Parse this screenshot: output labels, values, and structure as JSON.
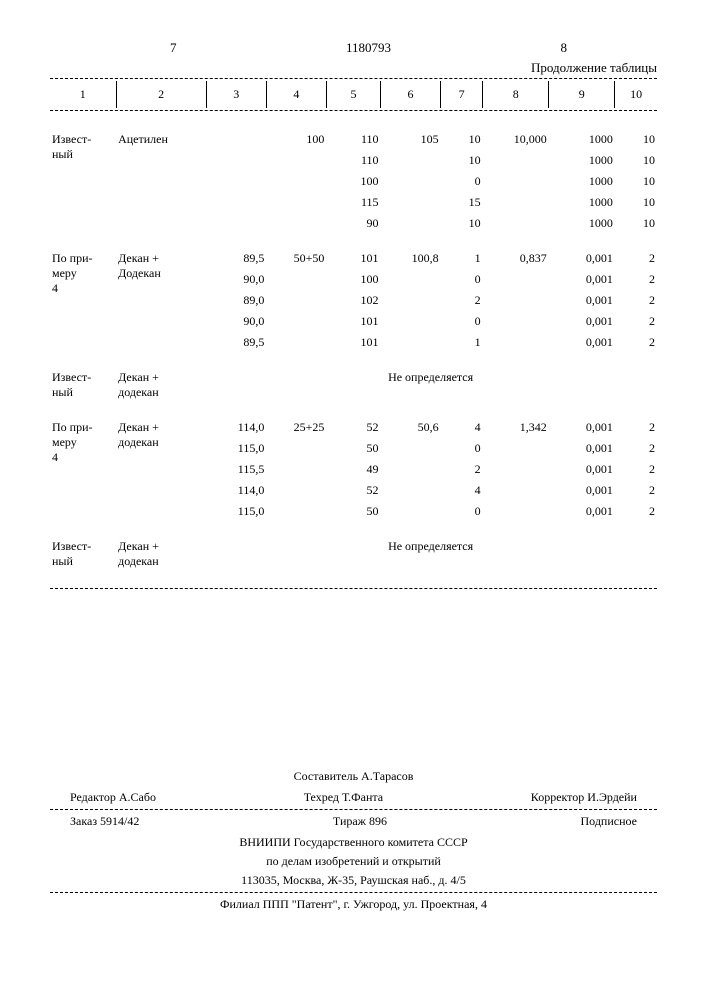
{
  "header": {
    "left_page": "7",
    "doc_number": "1180793",
    "right_page": "8",
    "continuation": "Продолжение таблицы"
  },
  "columns": [
    "1",
    "2",
    "3",
    "4",
    "5",
    "6",
    "7",
    "8",
    "9",
    "10"
  ],
  "groups": [
    {
      "label1": "Извест-\nный",
      "label2": "Ацетилен",
      "rows": [
        {
          "c3": "",
          "c4": "100",
          "c5": "110",
          "c6": "105",
          "c7": "10",
          "c8": "10,000",
          "c9": "1000",
          "c10": "10"
        },
        {
          "c3": "",
          "c4": "",
          "c5": "110",
          "c6": "",
          "c7": "10",
          "c8": "",
          "c9": "1000",
          "c10": "10"
        },
        {
          "c3": "",
          "c4": "",
          "c5": "100",
          "c6": "",
          "c7": "0",
          "c8": "",
          "c9": "1000",
          "c10": "10"
        },
        {
          "c3": "",
          "c4": "",
          "c5": "115",
          "c6": "",
          "c7": "15",
          "c8": "",
          "c9": "1000",
          "c10": "10"
        },
        {
          "c3": "",
          "c4": "",
          "c5": "90",
          "c6": "",
          "c7": "10",
          "c8": "",
          "c9": "1000",
          "c10": "10"
        }
      ]
    },
    {
      "label1": "По при-\nмеру\n4",
      "label2": "Декан +\nДодекан",
      "rows": [
        {
          "c3": "89,5",
          "c4": "50+50",
          "c5": "101",
          "c6": "100,8",
          "c7": "1",
          "c8": "0,837",
          "c9": "0,001",
          "c10": "2"
        },
        {
          "c3": "90,0",
          "c4": "",
          "c5": "100",
          "c6": "",
          "c7": "0",
          "c8": "",
          "c9": "0,001",
          "c10": "2"
        },
        {
          "c3": "89,0",
          "c4": "",
          "c5": "102",
          "c6": "",
          "c7": "2",
          "c8": "",
          "c9": "0,001",
          "c10": "2"
        },
        {
          "c3": "90,0",
          "c4": "",
          "c5": "101",
          "c6": "",
          "c7": "0",
          "c8": "",
          "c9": "0,001",
          "c10": "2"
        },
        {
          "c3": "89,5",
          "c4": "",
          "c5": "101",
          "c6": "",
          "c7": "1",
          "c8": "",
          "c9": "0,001",
          "c10": "2"
        }
      ]
    },
    {
      "label1": "Извест-\nный",
      "label2": "Декан +\nдодекан",
      "span_text": "Не определяется"
    },
    {
      "label1": "По при-\nмеру\n4",
      "label2": "Декан +\nдодекан",
      "rows": [
        {
          "c3": "114,0",
          "c4": "25+25",
          "c5": "52",
          "c6": "50,6",
          "c7": "4",
          "c8": "1,342",
          "c9": "0,001",
          "c10": "2"
        },
        {
          "c3": "115,0",
          "c4": "",
          "c5": "50",
          "c6": "",
          "c7": "0",
          "c8": "",
          "c9": "0,001",
          "c10": "2"
        },
        {
          "c3": "115,5",
          "c4": "",
          "c5": "49",
          "c6": "",
          "c7": "2",
          "c8": "",
          "c9": "0,001",
          "c10": "2"
        },
        {
          "c3": "114,0",
          "c4": "",
          "c5": "52",
          "c6": "",
          "c7": "4",
          "c8": "",
          "c9": "0,001",
          "c10": "2"
        },
        {
          "c3": "115,0",
          "c4": "",
          "c5": "50",
          "c6": "",
          "c7": "0",
          "c8": "",
          "c9": "0,001",
          "c10": "2"
        }
      ]
    },
    {
      "label1": "Извест-\nный",
      "label2": "Декан +\nдодекан",
      "span_text": "Не определяется"
    }
  ],
  "footer": {
    "compiler": "Составитель А.Тарасов",
    "editor": "Редактор А.Сабо",
    "tech": "Техред Т.Фанта",
    "corrector": "Корректор И.Эрдейи",
    "order": "Заказ 5914/42",
    "tirazh": "Тираж 896",
    "podpisnoe": "Подписное",
    "org1": "ВНИИПИ Государственного комитета СССР",
    "org2": "по делам изобретений и открытий",
    "addr1": "113035, Москва, Ж-35, Раушская наб., д. 4/5",
    "addr2": "Филиал ППП \"Патент\", г. Ужгород, ул. Проектная, 4"
  },
  "col_widths": [
    "55",
    "75",
    "50",
    "50",
    "45",
    "50",
    "35",
    "55",
    "55",
    "35"
  ]
}
